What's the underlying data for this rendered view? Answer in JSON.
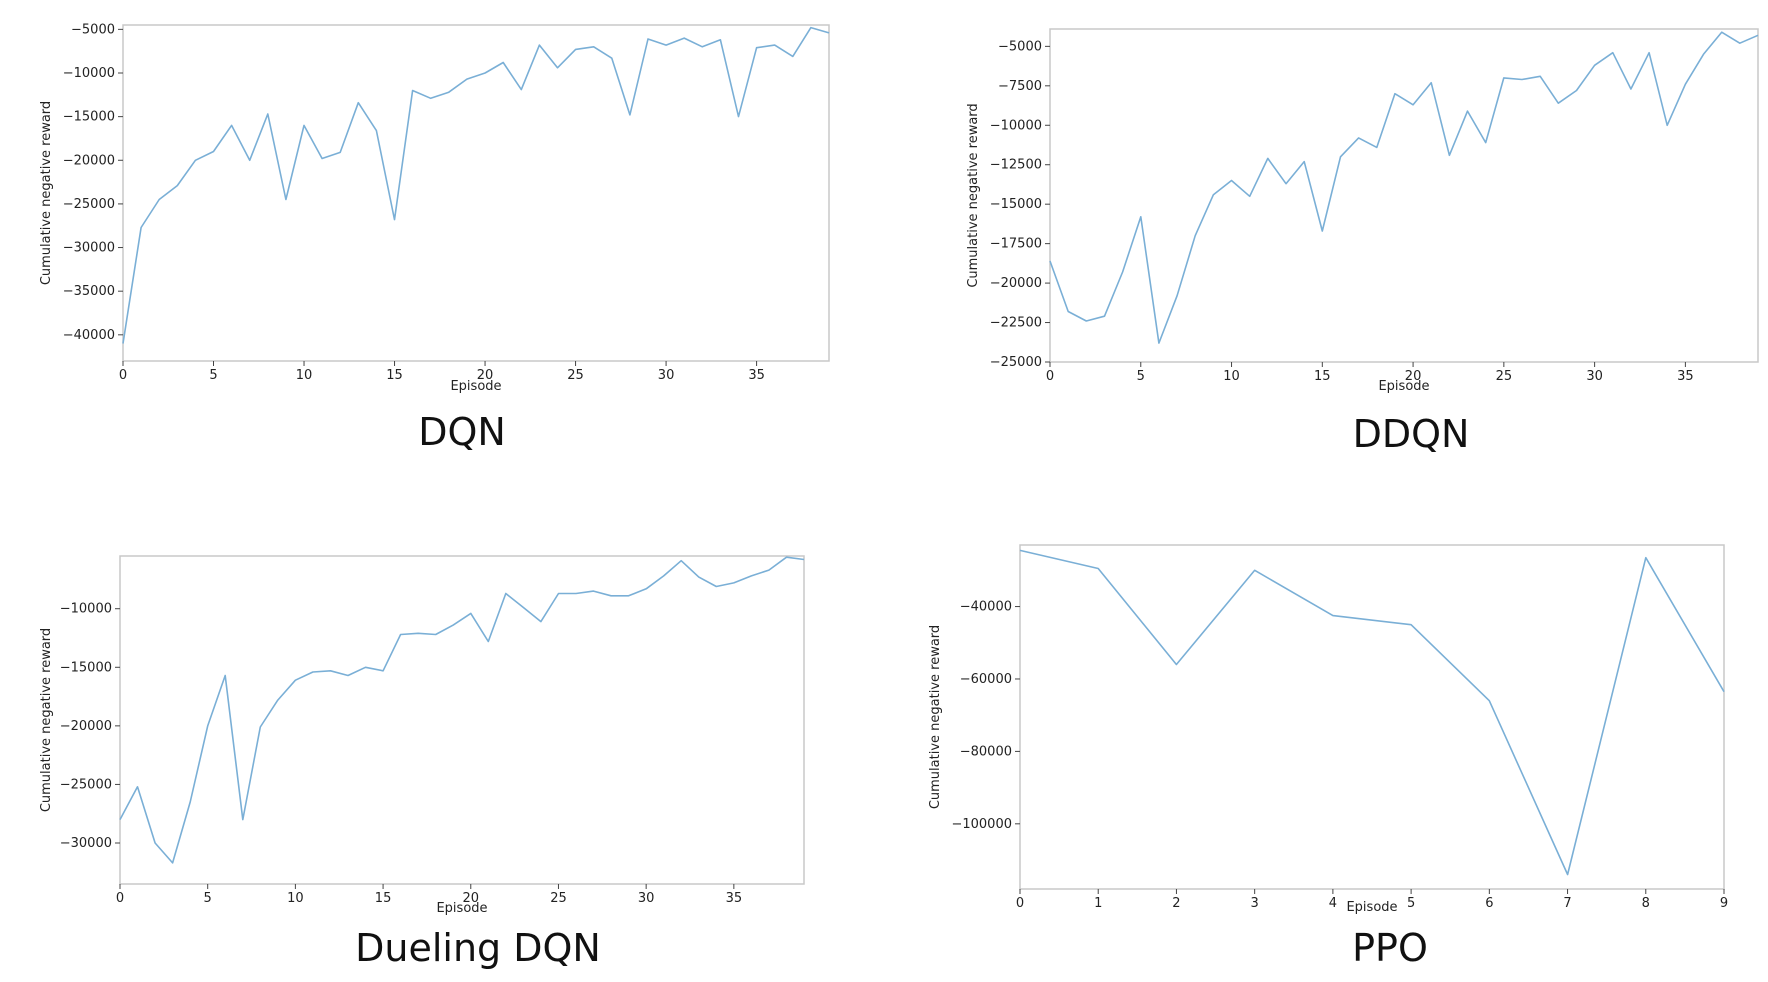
{
  "style": {
    "line_color": "#7aafd6"
  },
  "chart_data": [
    {
      "type": "line",
      "caption": "DQN",
      "xlabel": "Episode",
      "ylabel": "Cumulative negative reward",
      "xlim": [
        0,
        39
      ],
      "ylim": [
        -43000,
        -4500
      ],
      "xticks": [
        0,
        5,
        10,
        15,
        20,
        25,
        30,
        35
      ],
      "xtick_labels": [
        "0",
        "5",
        "10",
        "15",
        "20",
        "25",
        "30",
        "35"
      ],
      "yticks": [
        -5000,
        -10000,
        -15000,
        -20000,
        -25000,
        -30000,
        -35000,
        -40000
      ],
      "ytick_labels": [
        "−5000",
        "−10000",
        "−15000",
        "−20000",
        "−25000",
        "−30000",
        "−35000",
        "−40000"
      ],
      "x": [
        0,
        1,
        2,
        3,
        4,
        5,
        6,
        7,
        8,
        9,
        10,
        11,
        12,
        13,
        14,
        15,
        16,
        17,
        18,
        19,
        20,
        21,
        22,
        23,
        24,
        25,
        26,
        27,
        28,
        29,
        30,
        31,
        32,
        33,
        34,
        35,
        36,
        37,
        38,
        39
      ],
      "y": [
        -41000,
        -27700,
        -24500,
        -22900,
        -20000,
        -19000,
        -16000,
        -20000,
        -14700,
        -24500,
        -16000,
        -19800,
        -19100,
        -13400,
        -16600,
        -26800,
        -12000,
        -12900,
        -12200,
        -10700,
        -10000,
        -8800,
        -11900,
        -6800,
        -9400,
        -7300,
        -7000,
        -8300,
        -14800,
        -6100,
        -6800,
        -6000,
        -7000,
        -6200,
        -15000,
        -7100,
        -6800,
        -8100,
        -4800,
        -5400
      ]
    },
    {
      "type": "line",
      "caption": "DDQN",
      "xlabel": "Episode",
      "ylabel": "Cumulative negative reward",
      "xlim": [
        0,
        39
      ],
      "ylim": [
        -25000,
        -3900
      ],
      "xticks": [
        0,
        5,
        10,
        15,
        20,
        25,
        30,
        35
      ],
      "xtick_labels": [
        "0",
        "5",
        "10",
        "15",
        "20",
        "25",
        "30",
        "35"
      ],
      "yticks": [
        -5000,
        -7500,
        -10000,
        -12500,
        -15000,
        -17500,
        -20000,
        -22500,
        -25000
      ],
      "ytick_labels": [
        "−5000",
        "−7500",
        "−10000",
        "−12500",
        "−15000",
        "−17500",
        "−20000",
        "−22500",
        "−25000"
      ],
      "x": [
        0,
        1,
        2,
        3,
        4,
        5,
        6,
        7,
        8,
        9,
        10,
        11,
        12,
        13,
        14,
        15,
        16,
        17,
        18,
        19,
        20,
        21,
        22,
        23,
        24,
        25,
        26,
        27,
        28,
        29,
        30,
        31,
        32,
        33,
        34,
        35,
        36,
        37,
        38,
        39
      ],
      "y": [
        -18600,
        -21800,
        -22400,
        -22100,
        -19300,
        -15800,
        -23800,
        -20800,
        -17000,
        -14400,
        -13500,
        -14500,
        -12100,
        -13700,
        -12300,
        -16700,
        -12000,
        -10800,
        -11400,
        -8000,
        -8700,
        -7300,
        -11900,
        -9100,
        -11100,
        -7000,
        -7100,
        -6900,
        -8600,
        -7800,
        -6200,
        -5400,
        -7700,
        -5400,
        -10000,
        -7400,
        -5500,
        -4100,
        -4800,
        -4300
      ]
    },
    {
      "type": "line",
      "caption": "Dueling DQN",
      "xlabel": "Episode",
      "ylabel": "Cumulative negative reward",
      "xlim": [
        0,
        39
      ],
      "ylim": [
        -33500,
        -5500
      ],
      "xticks": [
        0,
        5,
        10,
        15,
        20,
        25,
        30,
        35
      ],
      "xtick_labels": [
        "0",
        "5",
        "10",
        "15",
        "20",
        "25",
        "30",
        "35"
      ],
      "yticks": [
        -10000,
        -15000,
        -20000,
        -25000,
        -30000
      ],
      "ytick_labels": [
        "−10000",
        "−15000",
        "−20000",
        "−25000",
        "−30000"
      ],
      "x": [
        0,
        1,
        2,
        3,
        4,
        5,
        6,
        7,
        8,
        9,
        10,
        11,
        12,
        13,
        14,
        15,
        16,
        17,
        18,
        19,
        20,
        21,
        22,
        23,
        24,
        25,
        26,
        27,
        28,
        29,
        30,
        31,
        32,
        33,
        34,
        35,
        36,
        37,
        38,
        39
      ],
      "y": [
        -28000,
        -25200,
        -30000,
        -31700,
        -26500,
        -20000,
        -15700,
        -28000,
        -20100,
        -17800,
        -16100,
        -15400,
        -15300,
        -15700,
        -15000,
        -15300,
        -12200,
        -12100,
        -12200,
        -11400,
        -10400,
        -12800,
        -8700,
        -9900,
        -11100,
        -8700,
        -8700,
        -8500,
        -8900,
        -8900,
        -8300,
        -7200,
        -5900,
        -7300,
        -8100,
        -7800,
        -7200,
        -6700,
        -5600,
        -5800
      ]
    },
    {
      "type": "line",
      "caption": "PPO",
      "xlabel": "Episode",
      "ylabel": "Cumulative negative reward",
      "xlim": [
        0,
        9
      ],
      "ylim": [
        -118000,
        -23000
      ],
      "xticks": [
        0,
        1,
        2,
        3,
        4,
        5,
        6,
        7,
        8,
        9
      ],
      "xtick_labels": [
        "0",
        "1",
        "2",
        "3",
        "4",
        "5",
        "6",
        "7",
        "8",
        "9"
      ],
      "yticks": [
        -40000,
        -60000,
        -80000,
        -100000
      ],
      "ytick_labels": [
        "−40000",
        "−60000",
        "−80000",
        "−100000"
      ],
      "x": [
        0,
        1,
        2,
        3,
        4,
        5,
        6,
        7,
        8,
        9
      ],
      "y": [
        -24500,
        -29500,
        -56000,
        -30000,
        -42500,
        -45000,
        -66000,
        -114000,
        -26500,
        -63500
      ]
    }
  ]
}
